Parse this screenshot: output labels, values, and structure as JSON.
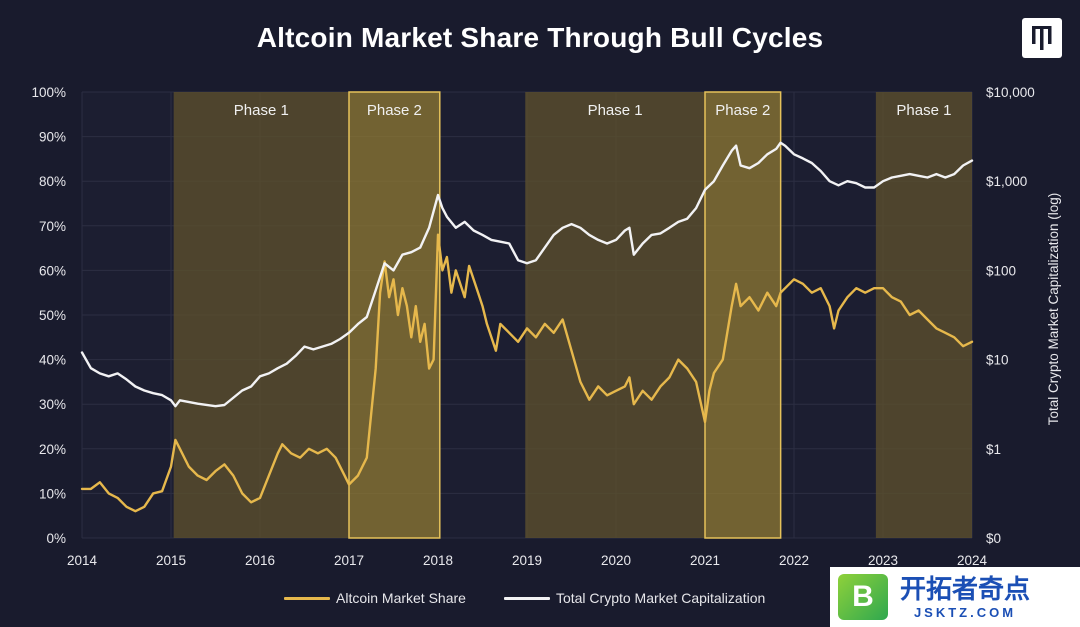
{
  "chart_data": {
    "type": "line",
    "title": "Altcoin Market Share Through Bull Cycles",
    "x_ticks": [
      "2014",
      "2015",
      "2016",
      "2017",
      "2018",
      "2019",
      "2020",
      "2021",
      "2022",
      "2023",
      "2024"
    ],
    "xlim": [
      2014,
      2024
    ],
    "y_left": {
      "ticks": [
        "0%",
        "10%",
        "20%",
        "30%",
        "40%",
        "50%",
        "60%",
        "70%",
        "80%",
        "90%",
        "100%"
      ],
      "range": [
        0,
        100
      ]
    },
    "y_right": {
      "label": "Total Crypto Market Capitalization (log)",
      "scale": "log",
      "ticks": [
        "$0",
        "$1",
        "$10",
        "$100",
        "$1,000",
        "$10,000"
      ],
      "range_log10": [
        -1,
        4
      ]
    },
    "phases": [
      {
        "label": "Phase 1",
        "start": 2015.03,
        "end": 2017.0,
        "kind": "phase1"
      },
      {
        "label": "Phase 2",
        "start": 2017.0,
        "end": 2018.02,
        "kind": "phase2"
      },
      {
        "label": "Phase 1",
        "start": 2018.98,
        "end": 2021.0,
        "kind": "phase1"
      },
      {
        "label": "Phase 2",
        "start": 2021.0,
        "end": 2021.85,
        "kind": "phase2"
      },
      {
        "label": "Phase 1",
        "start": 2022.92,
        "end": 2024.0,
        "kind": "phase1"
      }
    ],
    "series": [
      {
        "name": "Altcoin Market Share",
        "axis": "left",
        "color": "#e6b84c",
        "points": [
          [
            2014,
            11
          ],
          [
            2014.1,
            11
          ],
          [
            2014.2,
            12.5
          ],
          [
            2014.3,
            10
          ],
          [
            2014.4,
            9
          ],
          [
            2014.5,
            7
          ],
          [
            2014.6,
            6
          ],
          [
            2014.7,
            7
          ],
          [
            2014.8,
            10
          ],
          [
            2014.9,
            10.5
          ],
          [
            2015,
            16
          ],
          [
            2015.05,
            22
          ],
          [
            2015.1,
            20
          ],
          [
            2015.2,
            16
          ],
          [
            2015.3,
            14
          ],
          [
            2015.4,
            13
          ],
          [
            2015.5,
            15
          ],
          [
            2015.6,
            16.5
          ],
          [
            2015.7,
            14
          ],
          [
            2015.8,
            10
          ],
          [
            2015.9,
            8
          ],
          [
            2016,
            9
          ],
          [
            2016.1,
            14
          ],
          [
            2016.2,
            19
          ],
          [
            2016.25,
            21
          ],
          [
            2016.35,
            19
          ],
          [
            2016.45,
            18
          ],
          [
            2016.55,
            20
          ],
          [
            2016.65,
            19
          ],
          [
            2016.75,
            20
          ],
          [
            2016.85,
            18
          ],
          [
            2016.95,
            14
          ],
          [
            2017,
            12
          ],
          [
            2017.1,
            14
          ],
          [
            2017.2,
            18
          ],
          [
            2017.3,
            38
          ],
          [
            2017.35,
            55
          ],
          [
            2017.4,
            62
          ],
          [
            2017.45,
            54
          ],
          [
            2017.5,
            58
          ],
          [
            2017.55,
            50
          ],
          [
            2017.6,
            56
          ],
          [
            2017.65,
            52
          ],
          [
            2017.7,
            45
          ],
          [
            2017.75,
            52
          ],
          [
            2017.8,
            44
          ],
          [
            2017.85,
            48
          ],
          [
            2017.9,
            38
          ],
          [
            2017.95,
            40
          ],
          [
            2018,
            68
          ],
          [
            2018.05,
            60
          ],
          [
            2018.1,
            63
          ],
          [
            2018.15,
            55
          ],
          [
            2018.2,
            60
          ],
          [
            2018.3,
            54
          ],
          [
            2018.35,
            61
          ],
          [
            2018.45,
            55
          ],
          [
            2018.5,
            52
          ],
          [
            2018.55,
            48
          ],
          [
            2018.6,
            45
          ],
          [
            2018.65,
            42
          ],
          [
            2018.7,
            48
          ],
          [
            2018.8,
            46
          ],
          [
            2018.9,
            44
          ],
          [
            2019,
            47
          ],
          [
            2019.1,
            45
          ],
          [
            2019.2,
            48
          ],
          [
            2019.3,
            46
          ],
          [
            2019.4,
            49
          ],
          [
            2019.5,
            42
          ],
          [
            2019.6,
            35
          ],
          [
            2019.7,
            31
          ],
          [
            2019.8,
            34
          ],
          [
            2019.9,
            32
          ],
          [
            2020,
            33
          ],
          [
            2020.1,
            34
          ],
          [
            2020.15,
            36
          ],
          [
            2020.2,
            30
          ],
          [
            2020.3,
            33
          ],
          [
            2020.4,
            31
          ],
          [
            2020.5,
            34
          ],
          [
            2020.6,
            36
          ],
          [
            2020.7,
            40
          ],
          [
            2020.8,
            38
          ],
          [
            2020.9,
            35
          ],
          [
            2021,
            26
          ],
          [
            2021.05,
            33
          ],
          [
            2021.1,
            37
          ],
          [
            2021.2,
            40
          ],
          [
            2021.3,
            52
          ],
          [
            2021.35,
            57
          ],
          [
            2021.4,
            52
          ],
          [
            2021.5,
            54
          ],
          [
            2021.6,
            51
          ],
          [
            2021.7,
            55
          ],
          [
            2021.8,
            52
          ],
          [
            2021.85,
            55
          ],
          [
            2021.9,
            56
          ],
          [
            2022,
            58
          ],
          [
            2022.1,
            57
          ],
          [
            2022.2,
            55
          ],
          [
            2022.3,
            56
          ],
          [
            2022.4,
            52
          ],
          [
            2022.45,
            47
          ],
          [
            2022.5,
            51
          ],
          [
            2022.6,
            54
          ],
          [
            2022.7,
            56
          ],
          [
            2022.8,
            55
          ],
          [
            2022.9,
            56
          ],
          [
            2023,
            56
          ],
          [
            2023.1,
            54
          ],
          [
            2023.2,
            53
          ],
          [
            2023.3,
            50
          ],
          [
            2023.4,
            51
          ],
          [
            2023.5,
            49
          ],
          [
            2023.6,
            47
          ],
          [
            2023.7,
            46
          ],
          [
            2023.8,
            45
          ],
          [
            2023.9,
            43
          ],
          [
            2024,
            44
          ]
        ]
      },
      {
        "name": "Total Crypto Market Capitalization",
        "axis": "right",
        "color": "#f2f2f4",
        "points": [
          [
            2014,
            12
          ],
          [
            2014.1,
            8
          ],
          [
            2014.2,
            7
          ],
          [
            2014.3,
            6.5
          ],
          [
            2014.4,
            7
          ],
          [
            2014.5,
            6
          ],
          [
            2014.6,
            5
          ],
          [
            2014.7,
            4.5
          ],
          [
            2014.8,
            4.2
          ],
          [
            2014.9,
            4
          ],
          [
            2015,
            3.5
          ],
          [
            2015.05,
            3
          ],
          [
            2015.1,
            3.5
          ],
          [
            2015.3,
            3.2
          ],
          [
            2015.5,
            3
          ],
          [
            2015.6,
            3.1
          ],
          [
            2015.8,
            4.5
          ],
          [
            2015.9,
            5
          ],
          [
            2016,
            6.5
          ],
          [
            2016.1,
            7
          ],
          [
            2016.2,
            8
          ],
          [
            2016.3,
            9
          ],
          [
            2016.4,
            11
          ],
          [
            2016.5,
            14
          ],
          [
            2016.6,
            13
          ],
          [
            2016.7,
            14
          ],
          [
            2016.8,
            15
          ],
          [
            2016.9,
            17
          ],
          [
            2017,
            20
          ],
          [
            2017.1,
            25
          ],
          [
            2017.2,
            30
          ],
          [
            2017.3,
            60
          ],
          [
            2017.4,
            120
          ],
          [
            2017.5,
            100
          ],
          [
            2017.6,
            150
          ],
          [
            2017.7,
            160
          ],
          [
            2017.8,
            180
          ],
          [
            2017.9,
            300
          ],
          [
            2018,
            700
          ],
          [
            2018.05,
            500
          ],
          [
            2018.1,
            400
          ],
          [
            2018.2,
            300
          ],
          [
            2018.3,
            350
          ],
          [
            2018.4,
            280
          ],
          [
            2018.5,
            250
          ],
          [
            2018.6,
            220
          ],
          [
            2018.7,
            210
          ],
          [
            2018.8,
            200
          ],
          [
            2018.9,
            130
          ],
          [
            2019,
            120
          ],
          [
            2019.1,
            130
          ],
          [
            2019.2,
            180
          ],
          [
            2019.3,
            250
          ],
          [
            2019.4,
            300
          ],
          [
            2019.5,
            330
          ],
          [
            2019.6,
            300
          ],
          [
            2019.7,
            250
          ],
          [
            2019.8,
            220
          ],
          [
            2019.9,
            200
          ],
          [
            2020,
            220
          ],
          [
            2020.1,
            280
          ],
          [
            2020.15,
            300
          ],
          [
            2020.2,
            150
          ],
          [
            2020.3,
            200
          ],
          [
            2020.4,
            250
          ],
          [
            2020.5,
            260
          ],
          [
            2020.6,
            300
          ],
          [
            2020.7,
            350
          ],
          [
            2020.8,
            380
          ],
          [
            2020.9,
            500
          ],
          [
            2021,
            800
          ],
          [
            2021.1,
            1000
          ],
          [
            2021.2,
            1500
          ],
          [
            2021.3,
            2200
          ],
          [
            2021.35,
            2500
          ],
          [
            2021.4,
            1500
          ],
          [
            2021.5,
            1400
          ],
          [
            2021.6,
            1600
          ],
          [
            2021.7,
            2000
          ],
          [
            2021.8,
            2300
          ],
          [
            2021.85,
            2700
          ],
          [
            2021.9,
            2500
          ],
          [
            2022,
            2000
          ],
          [
            2022.1,
            1800
          ],
          [
            2022.2,
            1600
          ],
          [
            2022.3,
            1300
          ],
          [
            2022.4,
            1000
          ],
          [
            2022.5,
            900
          ],
          [
            2022.6,
            1000
          ],
          [
            2022.7,
            950
          ],
          [
            2022.8,
            850
          ],
          [
            2022.9,
            850
          ],
          [
            2023,
            1000
          ],
          [
            2023.1,
            1100
          ],
          [
            2023.2,
            1150
          ],
          [
            2023.3,
            1200
          ],
          [
            2023.4,
            1150
          ],
          [
            2023.5,
            1100
          ],
          [
            2023.6,
            1200
          ],
          [
            2023.7,
            1100
          ],
          [
            2023.8,
            1200
          ],
          [
            2023.9,
            1500
          ],
          [
            2024,
            1700
          ]
        ]
      }
    ],
    "colors": {
      "background": "#191b2d",
      "phase1_fill": "#5c4f2d",
      "phase2_fill": "#8f7a33",
      "phase2_border": "#e6c25a",
      "grid": "#2c2e42",
      "tick_text": "#e8e8ec"
    },
    "grid": true,
    "legend_position": "bottom-center"
  },
  "legend": {
    "item1": "Altcoin Market Share",
    "item2": "Total Crypto Market Capitalization"
  },
  "watermark": {
    "badge": "B",
    "chinese": "开拓者奇点",
    "domain": "JSKTZ.COM"
  }
}
